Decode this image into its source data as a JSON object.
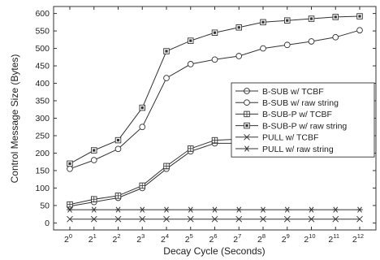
{
  "chart_data": {
    "type": "line",
    "xlabel": "Decay Cycle (Seconds)",
    "ylabel": "Control Message Size (Bytes)",
    "x_ticks": [
      {
        "base": "2",
        "exp": "0"
      },
      {
        "base": "2",
        "exp": "1"
      },
      {
        "base": "2",
        "exp": "2"
      },
      {
        "base": "2",
        "exp": "3"
      },
      {
        "base": "2",
        "exp": "4"
      },
      {
        "base": "2",
        "exp": "5"
      },
      {
        "base": "2",
        "exp": "6"
      },
      {
        "base": "2",
        "exp": "7"
      },
      {
        "base": "2",
        "exp": "8"
      },
      {
        "base": "2",
        "exp": "9"
      },
      {
        "base": "2",
        "exp": "10"
      },
      {
        "base": "2",
        "exp": "11"
      },
      {
        "base": "2",
        "exp": "12"
      }
    ],
    "x": [
      1,
      2,
      4,
      8,
      16,
      32,
      64,
      128,
      256,
      512,
      1024,
      2048,
      4096
    ],
    "x_scale": "log2",
    "ylim": [
      -20,
      620
    ],
    "y_ticks": [
      0,
      50,
      100,
      150,
      200,
      250,
      300,
      350,
      400,
      450,
      500,
      550,
      600
    ],
    "grid": false,
    "legend_position": "center-right",
    "series": [
      {
        "name": "B-SUB w/ TCBF",
        "marker": "circle-line",
        "values": [
          48,
          60,
          72,
          100,
          155,
          205,
          228,
          228,
          220,
          213,
          210,
          208,
          207
        ]
      },
      {
        "name": "B-SUB w/ raw string",
        "marker": "circle",
        "values": [
          155,
          180,
          212,
          275,
          415,
          455,
          468,
          478,
          500,
          510,
          520,
          532,
          552
        ]
      },
      {
        "name": "B-SUB-P w/ TCBF",
        "marker": "square-plus",
        "values": [
          53,
          68,
          78,
          107,
          163,
          213,
          237,
          240,
          232,
          227,
          224,
          222,
          220
        ]
      },
      {
        "name": "B-SUB-P w/ raw string",
        "marker": "square-dot",
        "values": [
          170,
          208,
          237,
          330,
          492,
          522,
          545,
          560,
          575,
          580,
          585,
          590,
          592
        ]
      },
      {
        "name": "PULL w/ TCBF",
        "marker": "x",
        "values": [
          11,
          11,
          11,
          11,
          11,
          11,
          11,
          11,
          11,
          11,
          11,
          11,
          11
        ]
      },
      {
        "name": "PULL w/ raw string",
        "marker": "asterisk",
        "values": [
          38,
          38,
          38,
          38,
          38,
          38,
          38,
          38,
          38,
          38,
          38,
          38,
          38
        ]
      }
    ]
  }
}
